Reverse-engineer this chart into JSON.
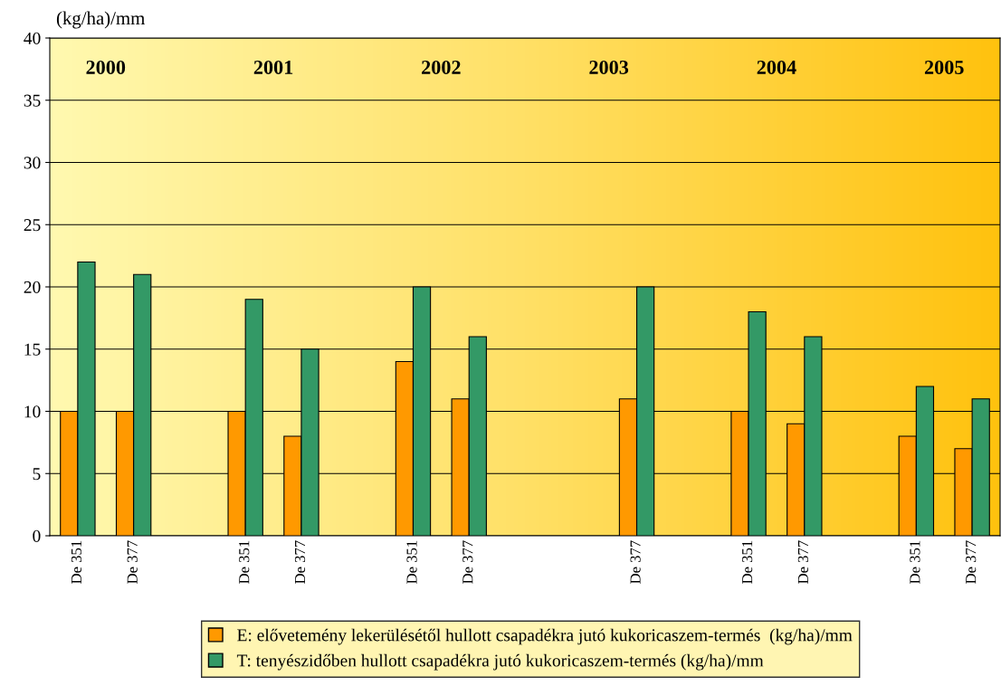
{
  "chart_data": {
    "type": "bar",
    "ylabel": "(kg/ha)/mm",
    "categories": [
      "De 351",
      "De 377",
      null,
      "De 351",
      "De 377",
      null,
      "De 351",
      "De 377",
      null,
      null,
      "De 377",
      null,
      "De 351",
      "De 377",
      null,
      "De 351",
      "De 377"
    ],
    "series": [
      {
        "name": "E: elővetemény lekerülésétől hullott csapadékra jutó kukoricaszem-termés  (kg/ha)/mm",
        "color": "#ff9900",
        "values": [
          10,
          10,
          null,
          10,
          8,
          null,
          14,
          11,
          null,
          null,
          11,
          null,
          10,
          9,
          null,
          8,
          7
        ]
      },
      {
        "name": "T: tenyészidőben hullott csapadékra jutó kukoricaszem-termés (kg/ha)/mm",
        "color": "#339966",
        "values": [
          22,
          21,
          null,
          19,
          15,
          null,
          20,
          16,
          null,
          null,
          20,
          null,
          18,
          16,
          null,
          12,
          11
        ]
      }
    ],
    "annotations": [
      "2000",
      "2001",
      "2002",
      "2003",
      "2004",
      "2005"
    ],
    "ylim": [
      0,
      40
    ],
    "yticks": [
      0,
      5,
      10,
      15,
      20,
      25,
      30,
      35,
      40
    ],
    "grid": "y",
    "legend": "bottom"
  }
}
